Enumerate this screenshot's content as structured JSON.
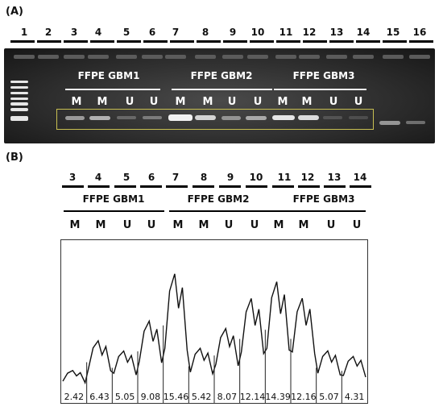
{
  "panel_a": {
    "label": "(A)",
    "lanes": [
      "1",
      "2",
      "3",
      "4",
      "5",
      "6",
      "7",
      "8",
      "9",
      "10",
      "11",
      "12",
      "13",
      "14",
      "15",
      "16"
    ],
    "groups": [
      {
        "name": "FFPE GBM1",
        "marks": [
          "M",
          "M",
          "U",
          "U"
        ]
      },
      {
        "name": "FFPE GBM2",
        "marks": [
          "M",
          "M",
          "U",
          "U"
        ]
      },
      {
        "name": "FFPE GBM3",
        "marks": [
          "M",
          "M",
          "U",
          "U"
        ]
      }
    ]
  },
  "panel_b": {
    "label": "(B)",
    "lanes": [
      "3",
      "4",
      "5",
      "6",
      "7",
      "8",
      "9",
      "10",
      "11",
      "12",
      "13",
      "14"
    ],
    "groups": [
      {
        "name": "FFPE GBM1",
        "marks": [
          "M",
          "M",
          "U",
          "U"
        ]
      },
      {
        "name": "FFPE GBM2",
        "marks": [
          "M",
          "M",
          "U",
          "U"
        ]
      },
      {
        "name": "FFPE GBM3",
        "marks": [
          "M",
          "M",
          "U",
          "U"
        ]
      }
    ]
  },
  "chart_data": {
    "type": "line",
    "title": "",
    "xlabel": "",
    "ylabel": "",
    "categories": [
      "3",
      "4",
      "5",
      "6",
      "7",
      "8",
      "9",
      "10",
      "11",
      "12",
      "13",
      "14"
    ],
    "values": [
      2.42,
      6.43,
      5.05,
      9.08,
      15.46,
      5.42,
      8.07,
      12.14,
      14.39,
      12.16,
      5.07,
      4.31
    ],
    "value_labels": [
      "2.42",
      "6.43",
      "5.05",
      "9.08",
      "15.46",
      "5.42",
      "8.07",
      "12.14",
      "14.39",
      "12.16",
      "5.07",
      "4.31"
    ],
    "grid": false,
    "legend": "none"
  }
}
